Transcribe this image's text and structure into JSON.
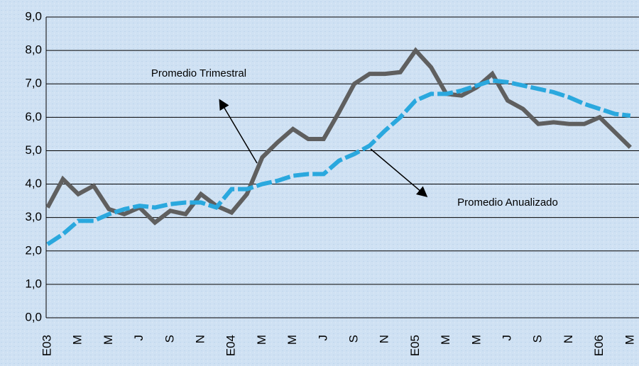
{
  "chart_data": {
    "type": "line",
    "categories": [
      "E03",
      null,
      "M",
      null,
      "M",
      null,
      "J",
      null,
      "S",
      null,
      "N",
      null,
      "E04",
      null,
      "M",
      null,
      "M",
      null,
      "J",
      null,
      "S",
      null,
      "N",
      null,
      "E05",
      null,
      "M",
      null,
      "M",
      null,
      "J",
      null,
      "S",
      null,
      "N",
      null,
      "E06",
      null,
      "M"
    ],
    "series": [
      {
        "name": "Promedio Trimestral",
        "color": "#5f5f5f",
        "dashed": false,
        "values": [
          3.3,
          4.15,
          3.7,
          3.95,
          3.25,
          3.1,
          3.3,
          2.85,
          3.2,
          3.1,
          3.7,
          3.35,
          3.15,
          3.7,
          4.8,
          5.25,
          5.65,
          5.35,
          5.35,
          6.15,
          7.0,
          7.3,
          7.3,
          7.35,
          8.0,
          7.5,
          6.7,
          6.65,
          6.9,
          7.3,
          6.5,
          6.25,
          5.8,
          5.85,
          5.8,
          5.8,
          6.0,
          5.55,
          5.1
        ]
      },
      {
        "name": "Promedio Anualizado",
        "color": "#2aa8de",
        "dashed": true,
        "values": [
          2.2,
          2.5,
          2.9,
          2.9,
          3.1,
          3.25,
          3.35,
          3.3,
          3.4,
          3.45,
          3.45,
          3.3,
          3.85,
          3.85,
          4.0,
          4.1,
          4.25,
          4.3,
          4.3,
          4.7,
          4.9,
          5.15,
          5.6,
          6.0,
          6.5,
          6.7,
          6.7,
          6.8,
          6.95,
          7.1,
          7.05,
          6.95,
          6.85,
          6.75,
          6.6,
          6.4,
          6.25,
          6.1,
          6.05
        ]
      }
    ],
    "ylim": [
      0,
      9
    ],
    "yticks": [
      {
        "value": 0,
        "label": "0,0"
      },
      {
        "value": 1,
        "label": "1,0"
      },
      {
        "value": 2,
        "label": "2,0"
      },
      {
        "value": 3,
        "label": "3,0"
      },
      {
        "value": 4,
        "label": "4,0"
      },
      {
        "value": 5,
        "label": "5,0"
      },
      {
        "value": 6,
        "label": "6,0"
      },
      {
        "value": 7,
        "label": "7,0"
      },
      {
        "value": 8,
        "label": "8,0"
      },
      {
        "value": 9,
        "label": "9,0"
      }
    ],
    "grid": true
  }
}
